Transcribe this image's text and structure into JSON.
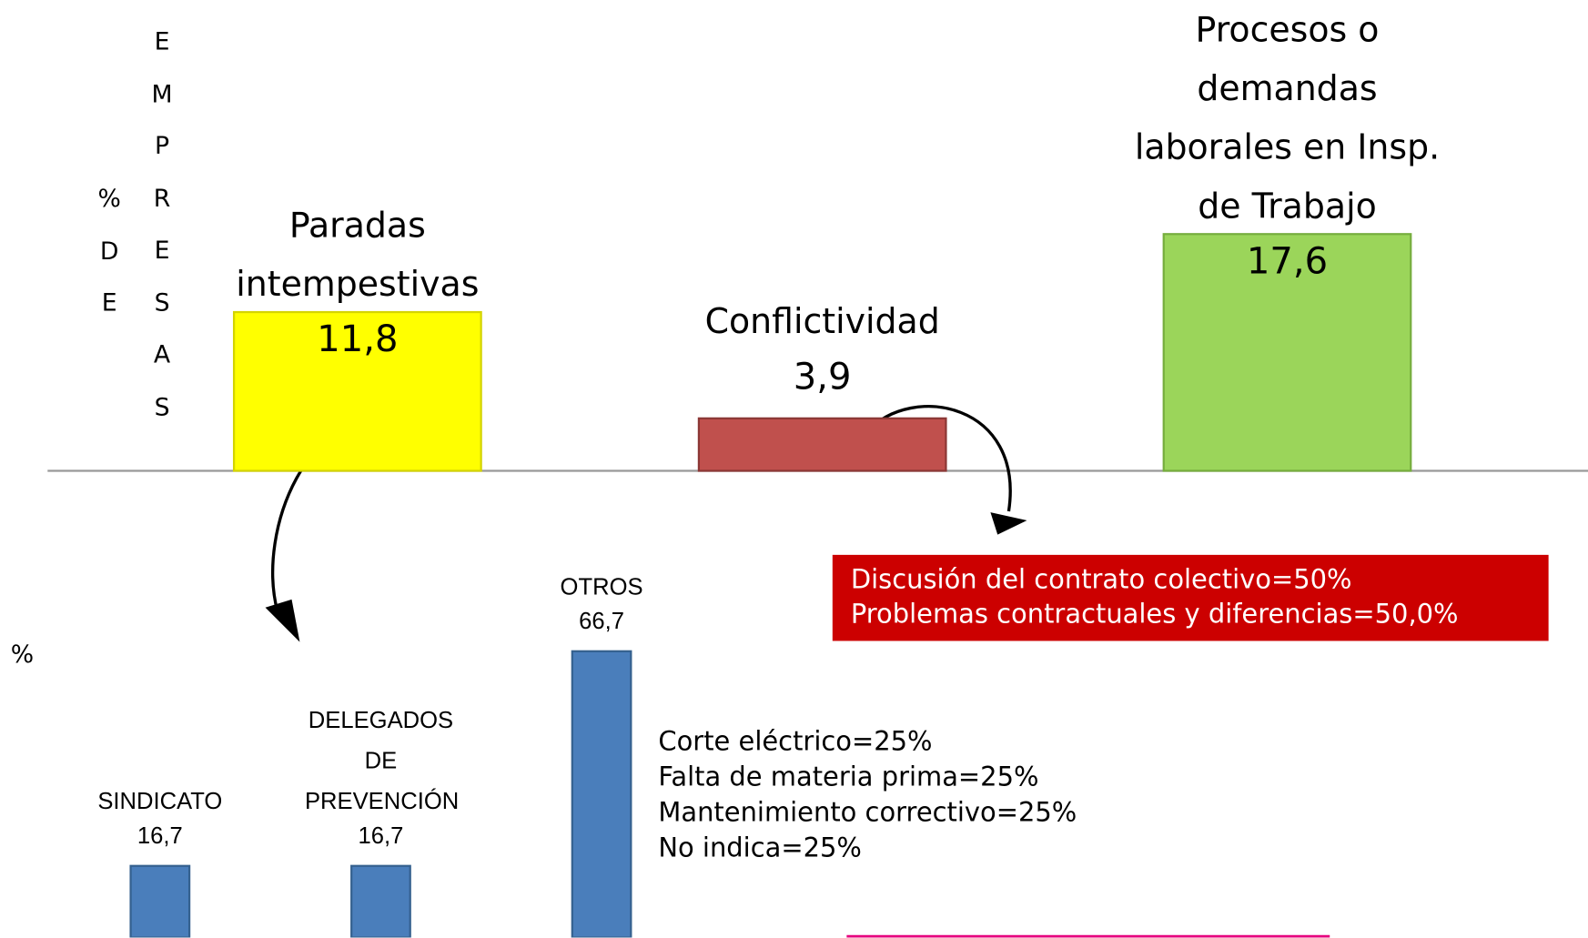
{
  "chart_data": [
    {
      "type": "bar",
      "ylabel": [
        "% DE",
        "EMPRESAS"
      ],
      "categories": [
        "Paradas intempestivas",
        "Conflictividad",
        "Procesos o demandas laborales en Insp. de Trabajo"
      ],
      "values": [
        11.8,
        3.9,
        17.6
      ],
      "value_labels": [
        "11,8",
        "3,9",
        "17,6"
      ],
      "colors": [
        "#ffff00",
        "#c0504d",
        "#9bd55a"
      ],
      "ylim": [
        0,
        35
      ],
      "annotation": [
        "Discusión del contrato colectivo=50%",
        "Problemas contractuales y diferencias=50,0%"
      ]
    },
    {
      "type": "bar",
      "ylabel": "%",
      "categories": [
        "SINDICATO",
        "DELEGADOS DE PREVENCIÓN",
        "OTROS"
      ],
      "values": [
        16.7,
        16.7,
        66.7
      ],
      "value_labels": [
        "16,7",
        "16,7",
        "66,7"
      ],
      "color": "#4a7ebb",
      "ylim": [
        0,
        100
      ],
      "annotation": [
        "Corte eléctrico=25%",
        "Falta de materia prima=25%",
        "Mantenimiento correctivo=25%",
        "No indica=25%"
      ]
    }
  ]
}
